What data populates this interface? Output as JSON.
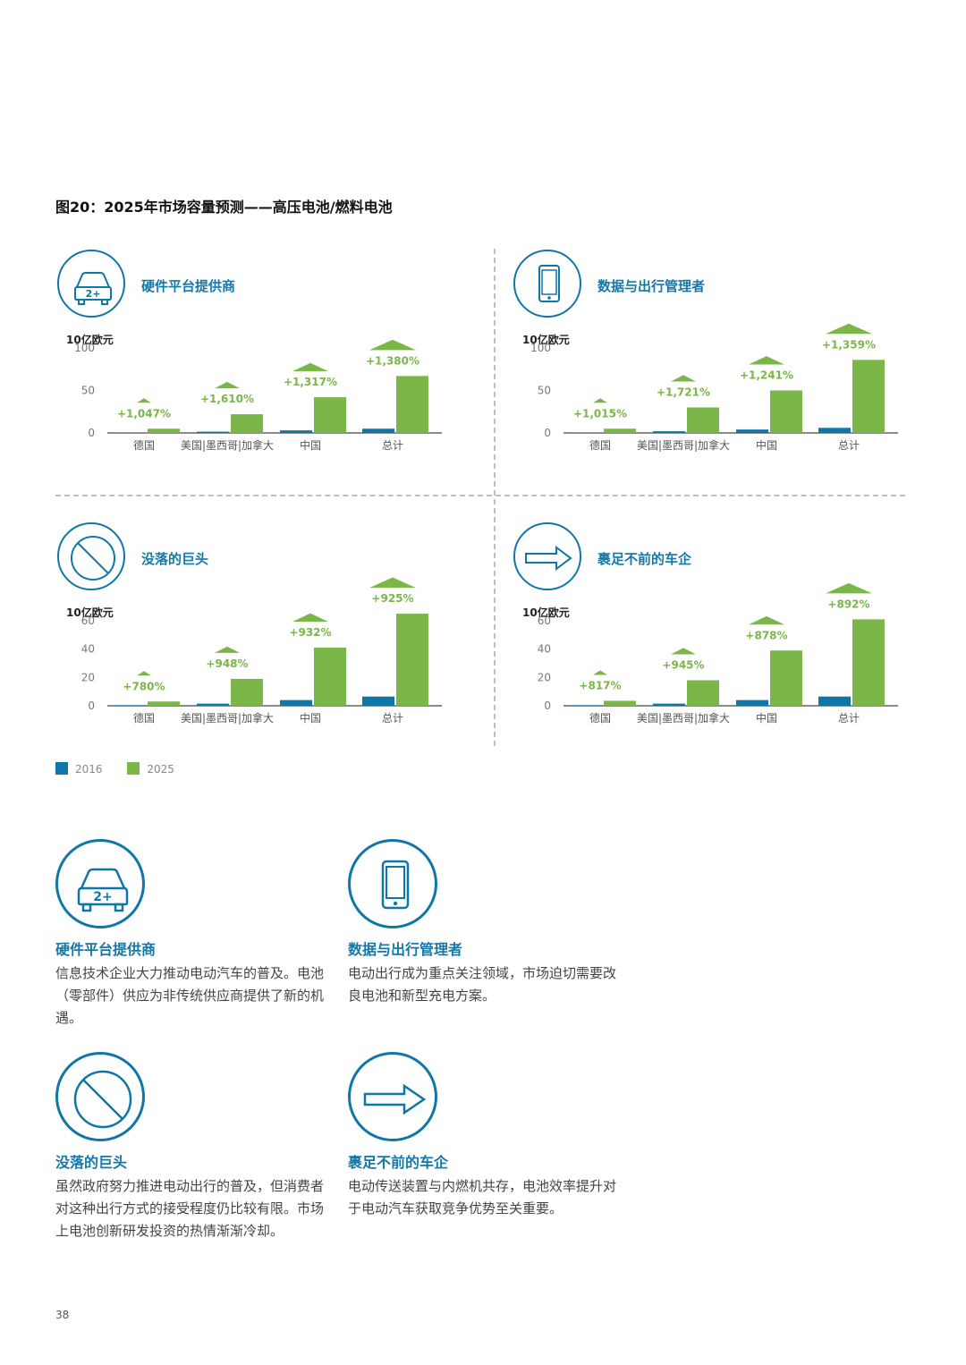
{
  "figure_title": "图20：2025年市场容量预测——高压电池/燃料电池",
  "colors": {
    "2016": "#0f77a8",
    "2025": "#7ab648",
    "accent": "#1478a8"
  },
  "chart_data": [
    {
      "type": "bar",
      "title": "硬件平台提供商",
      "icon": "car-2plus-icon",
      "ylabel": "10亿欧元",
      "ylim": [
        0,
        100
      ],
      "yticks": [
        0,
        50,
        100
      ],
      "categories": [
        "德国",
        "美国|墨西哥|加拿大",
        "中国",
        "总计"
      ],
      "series": [
        {
          "name": "2016",
          "values": [
            0.5,
            1.5,
            3,
            5
          ]
        },
        {
          "name": "2025",
          "values": [
            5,
            22,
            42,
            67
          ]
        }
      ],
      "growth_labels": [
        "+1,047%",
        "+1,610%",
        "+1,317%",
        "+1,380%"
      ]
    },
    {
      "type": "bar",
      "title": "数据与出行管理者",
      "icon": "smartphone-icon",
      "ylabel": "10亿欧元",
      "ylim": [
        0,
        100
      ],
      "yticks": [
        0,
        50,
        100
      ],
      "categories": [
        "德国",
        "美国|墨西哥|加拿大",
        "中国",
        "总计"
      ],
      "series": [
        {
          "name": "2016",
          "values": [
            0.5,
            2,
            4,
            6
          ]
        },
        {
          "name": "2025",
          "values": [
            5,
            30,
            50,
            86
          ]
        }
      ],
      "growth_labels": [
        "+1,015%",
        "+1,721%",
        "+1,241%",
        "+1,359%"
      ]
    },
    {
      "type": "bar",
      "title": "没落的巨头",
      "icon": "prohibited-icon",
      "ylabel": "10亿欧元",
      "ylim": [
        0,
        60
      ],
      "yticks": [
        0,
        20,
        40,
        60
      ],
      "categories": [
        "德国",
        "美国|墨西哥|加拿大",
        "中国",
        "总计"
      ],
      "series": [
        {
          "name": "2016",
          "values": [
            0.4,
            1.5,
            4,
            6.5
          ]
        },
        {
          "name": "2025",
          "values": [
            3,
            19,
            41,
            65
          ]
        }
      ],
      "growth_labels": [
        "+780%",
        "+948%",
        "+932%",
        "+925%"
      ]
    },
    {
      "type": "bar",
      "title": "裹足不前的车企",
      "icon": "arrow-right-icon",
      "ylabel": "10亿欧元",
      "ylim": [
        0,
        60
      ],
      "yticks": [
        0,
        20,
        40,
        60
      ],
      "categories": [
        "德国",
        "美国|墨西哥|加拿大",
        "中国",
        "总计"
      ],
      "series": [
        {
          "name": "2016",
          "values": [
            0.4,
            1.5,
            4,
            6.5
          ]
        },
        {
          "name": "2025",
          "values": [
            3.5,
            18,
            39,
            61
          ]
        }
      ],
      "growth_labels": [
        "+817%",
        "+945%",
        "+878%",
        "+892%"
      ]
    }
  ],
  "legend": [
    "2016",
    "2025"
  ],
  "descriptions": [
    {
      "icon": "car-2plus-icon",
      "title": "硬件平台提供商",
      "text": "信息技术企业大力推动电动汽车的普及。电池（零部件）供应为非传统供应商提供了新的机遇。"
    },
    {
      "icon": "smartphone-icon",
      "title": "数据与出行管理者",
      "text": "电动出行成为重点关注领域，市场迫切需要改良电池和新型充电方案。"
    },
    {
      "icon": "prohibited-icon",
      "title": "没落的巨头",
      "text": "虽然政府努力推进电动出行的普及，但消费者对这种出行方式的接受程度仍比较有限。市场上电池创新研发投资的热情渐渐冷却。"
    },
    {
      "icon": "arrow-right-icon",
      "title": "裹足不前的车企",
      "text": "电动传送装置与内燃机共存，电池效率提升对于电动汽车获取竞争优势至关重要。"
    }
  ],
  "page_number": "38"
}
